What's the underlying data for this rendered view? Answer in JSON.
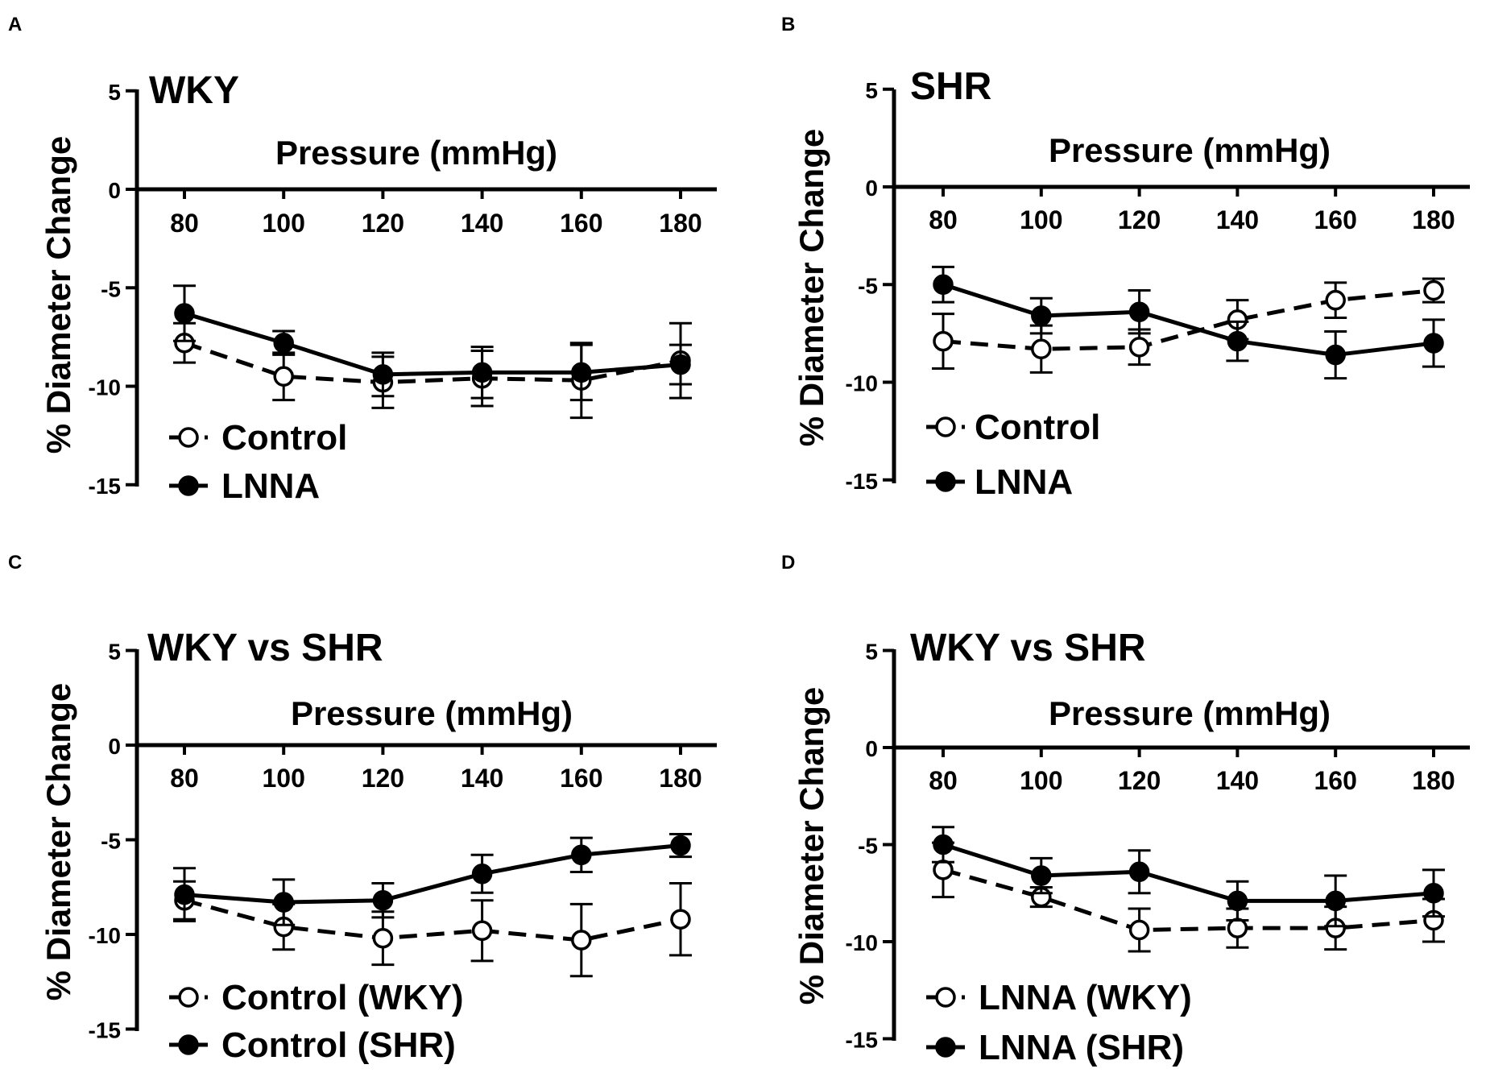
{
  "chart_data": [
    {
      "panel_label": "A",
      "type": "line",
      "title": "WKY",
      "xlabel": "Pressure (mmHg)",
      "ylabel": "% Diameter Change",
      "x": [
        80,
        100,
        120,
        140,
        160,
        180
      ],
      "xticks": [
        "80",
        "100",
        "120",
        "140",
        "160",
        "180"
      ],
      "yticks": [
        "5",
        "0",
        "-5",
        "-10",
        "-15"
      ],
      "ylim": [
        -15,
        5
      ],
      "xlim": [
        70,
        190
      ],
      "legend": "bottom-left",
      "series": [
        {
          "name": "Control",
          "style": "dashed-open",
          "values": [
            -7.8,
            -9.5,
            -9.8,
            -9.6,
            -9.7,
            -8.7
          ],
          "errors": [
            1.0,
            1.2,
            1.3,
            1.4,
            1.9,
            1.9
          ]
        },
        {
          "name": "LNNA",
          "style": "solid-filled",
          "values": [
            -6.3,
            -7.8,
            -9.4,
            -9.3,
            -9.3,
            -8.9
          ],
          "errors": [
            1.4,
            0.6,
            1.1,
            1.3,
            1.4,
            1.0
          ]
        }
      ]
    },
    {
      "panel_label": "B",
      "type": "line",
      "title": "SHR",
      "xlabel": "Pressure (mmHg)",
      "ylabel": "% Diameter Change",
      "x": [
        80,
        100,
        120,
        140,
        160,
        180
      ],
      "xticks": [
        "80",
        "100",
        "120",
        "140",
        "160",
        "180"
      ],
      "yticks": [
        "5",
        "0",
        "-5",
        "-10",
        "-15"
      ],
      "ylim": [
        -15,
        5
      ],
      "xlim": [
        70,
        190
      ],
      "legend": "bottom-left",
      "series": [
        {
          "name": "Control",
          "style": "dashed-open",
          "values": [
            -7.9,
            -8.3,
            -8.2,
            -6.8,
            -5.8,
            -5.3
          ],
          "errors": [
            1.4,
            1.2,
            0.9,
            1.0,
            0.9,
            0.6
          ]
        },
        {
          "name": "LNNA",
          "style": "solid-filled",
          "values": [
            -5.0,
            -6.6,
            -6.4,
            -7.9,
            -8.6,
            -8.0
          ],
          "errors": [
            0.9,
            0.9,
            1.1,
            1.0,
            1.2,
            1.2
          ]
        }
      ]
    },
    {
      "panel_label": "C",
      "type": "line",
      "title": "WKY vs SHR",
      "xlabel": "Pressure (mmHg)",
      "ylabel": "% Diameter Change",
      "x": [
        80,
        100,
        120,
        140,
        160,
        180
      ],
      "xticks": [
        "80",
        "100",
        "120",
        "140",
        "160",
        "180"
      ],
      "yticks": [
        "5",
        "0",
        "-5",
        "-10",
        "-15"
      ],
      "ylim": [
        -15,
        5
      ],
      "xlim": [
        70,
        190
      ],
      "legend": "bottom-left",
      "series": [
        {
          "name": "Control (WKY)",
          "style": "dashed-open",
          "values": [
            -8.2,
            -9.6,
            -10.2,
            -9.8,
            -10.3,
            -9.2
          ],
          "errors": [
            1.0,
            1.2,
            1.4,
            1.6,
            1.9,
            1.9
          ]
        },
        {
          "name": "Control (SHR)",
          "style": "solid-filled",
          "values": [
            -7.9,
            -8.3,
            -8.2,
            -6.8,
            -5.8,
            -5.3
          ],
          "errors": [
            1.4,
            1.2,
            0.9,
            1.0,
            0.9,
            0.6
          ]
        }
      ]
    },
    {
      "panel_label": "D",
      "type": "line",
      "title": "WKY vs SHR",
      "xlabel": "Pressure (mmHg)",
      "ylabel": "% Diameter Change",
      "x": [
        80,
        100,
        120,
        140,
        160,
        180
      ],
      "xticks": [
        "80",
        "100",
        "120",
        "140",
        "160",
        "180"
      ],
      "yticks": [
        "5",
        "0",
        "-5",
        "-10",
        "-15"
      ],
      "ylim": [
        -15,
        5
      ],
      "xlim": [
        70,
        190
      ],
      "legend": "bottom-left",
      "series": [
        {
          "name": "LNNA (WKY)",
          "style": "dashed-open",
          "values": [
            -6.3,
            -7.7,
            -9.4,
            -9.3,
            -9.3,
            -8.9
          ],
          "errors": [
            1.4,
            0.5,
            1.1,
            1.0,
            1.1,
            1.1
          ]
        },
        {
          "name": "LNNA (SHR)",
          "style": "solid-filled",
          "values": [
            -5.0,
            -6.6,
            -6.4,
            -7.9,
            -7.9,
            -7.5
          ],
          "errors": [
            0.9,
            0.9,
            1.1,
            1.0,
            1.3,
            1.2
          ]
        }
      ]
    }
  ]
}
